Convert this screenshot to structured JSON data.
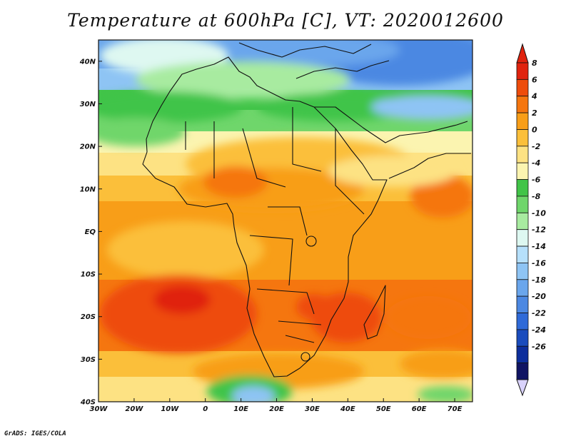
{
  "title": "Temperature at 600hPa [C], VT: 2020012600",
  "footer": "GrADS: IGES/COLA",
  "map": {
    "lon_ticks": [
      "30W",
      "20W",
      "10W",
      "0",
      "10E",
      "20E",
      "30E",
      "40E",
      "50E",
      "60E",
      "70E"
    ],
    "lat_ticks": [
      "40N",
      "30N",
      "20N",
      "10N",
      "EQ",
      "10S",
      "20S",
      "30S",
      "40S"
    ],
    "lon_range": [
      -30,
      75
    ],
    "lat_range": [
      -40,
      45
    ]
  },
  "colorbar": {
    "labels": [
      "8",
      "6",
      "4",
      "2",
      "0",
      "-2",
      "-4",
      "-6",
      "-8",
      "-10",
      "-12",
      "-14",
      "-16",
      "-18",
      "-20",
      "-22",
      "-24",
      "-26"
    ],
    "colors": [
      "#e0230e",
      "#ee4c0b",
      "#f5760f",
      "#f89e18",
      "#fbbf3a",
      "#fde283",
      "#fbf4b0",
      "#41c448",
      "#6fd66b",
      "#a8eba0",
      "#def8f1",
      "#b6e0fb",
      "#8ec4f4",
      "#6aa6ec",
      "#4c88e2",
      "#2f6ad8",
      "#1a4cbd",
      "#0d2e9c",
      "#101463"
    ],
    "top_cap_color": "#e0230e",
    "bottom_cap_color": "#d9d2fb"
  }
}
